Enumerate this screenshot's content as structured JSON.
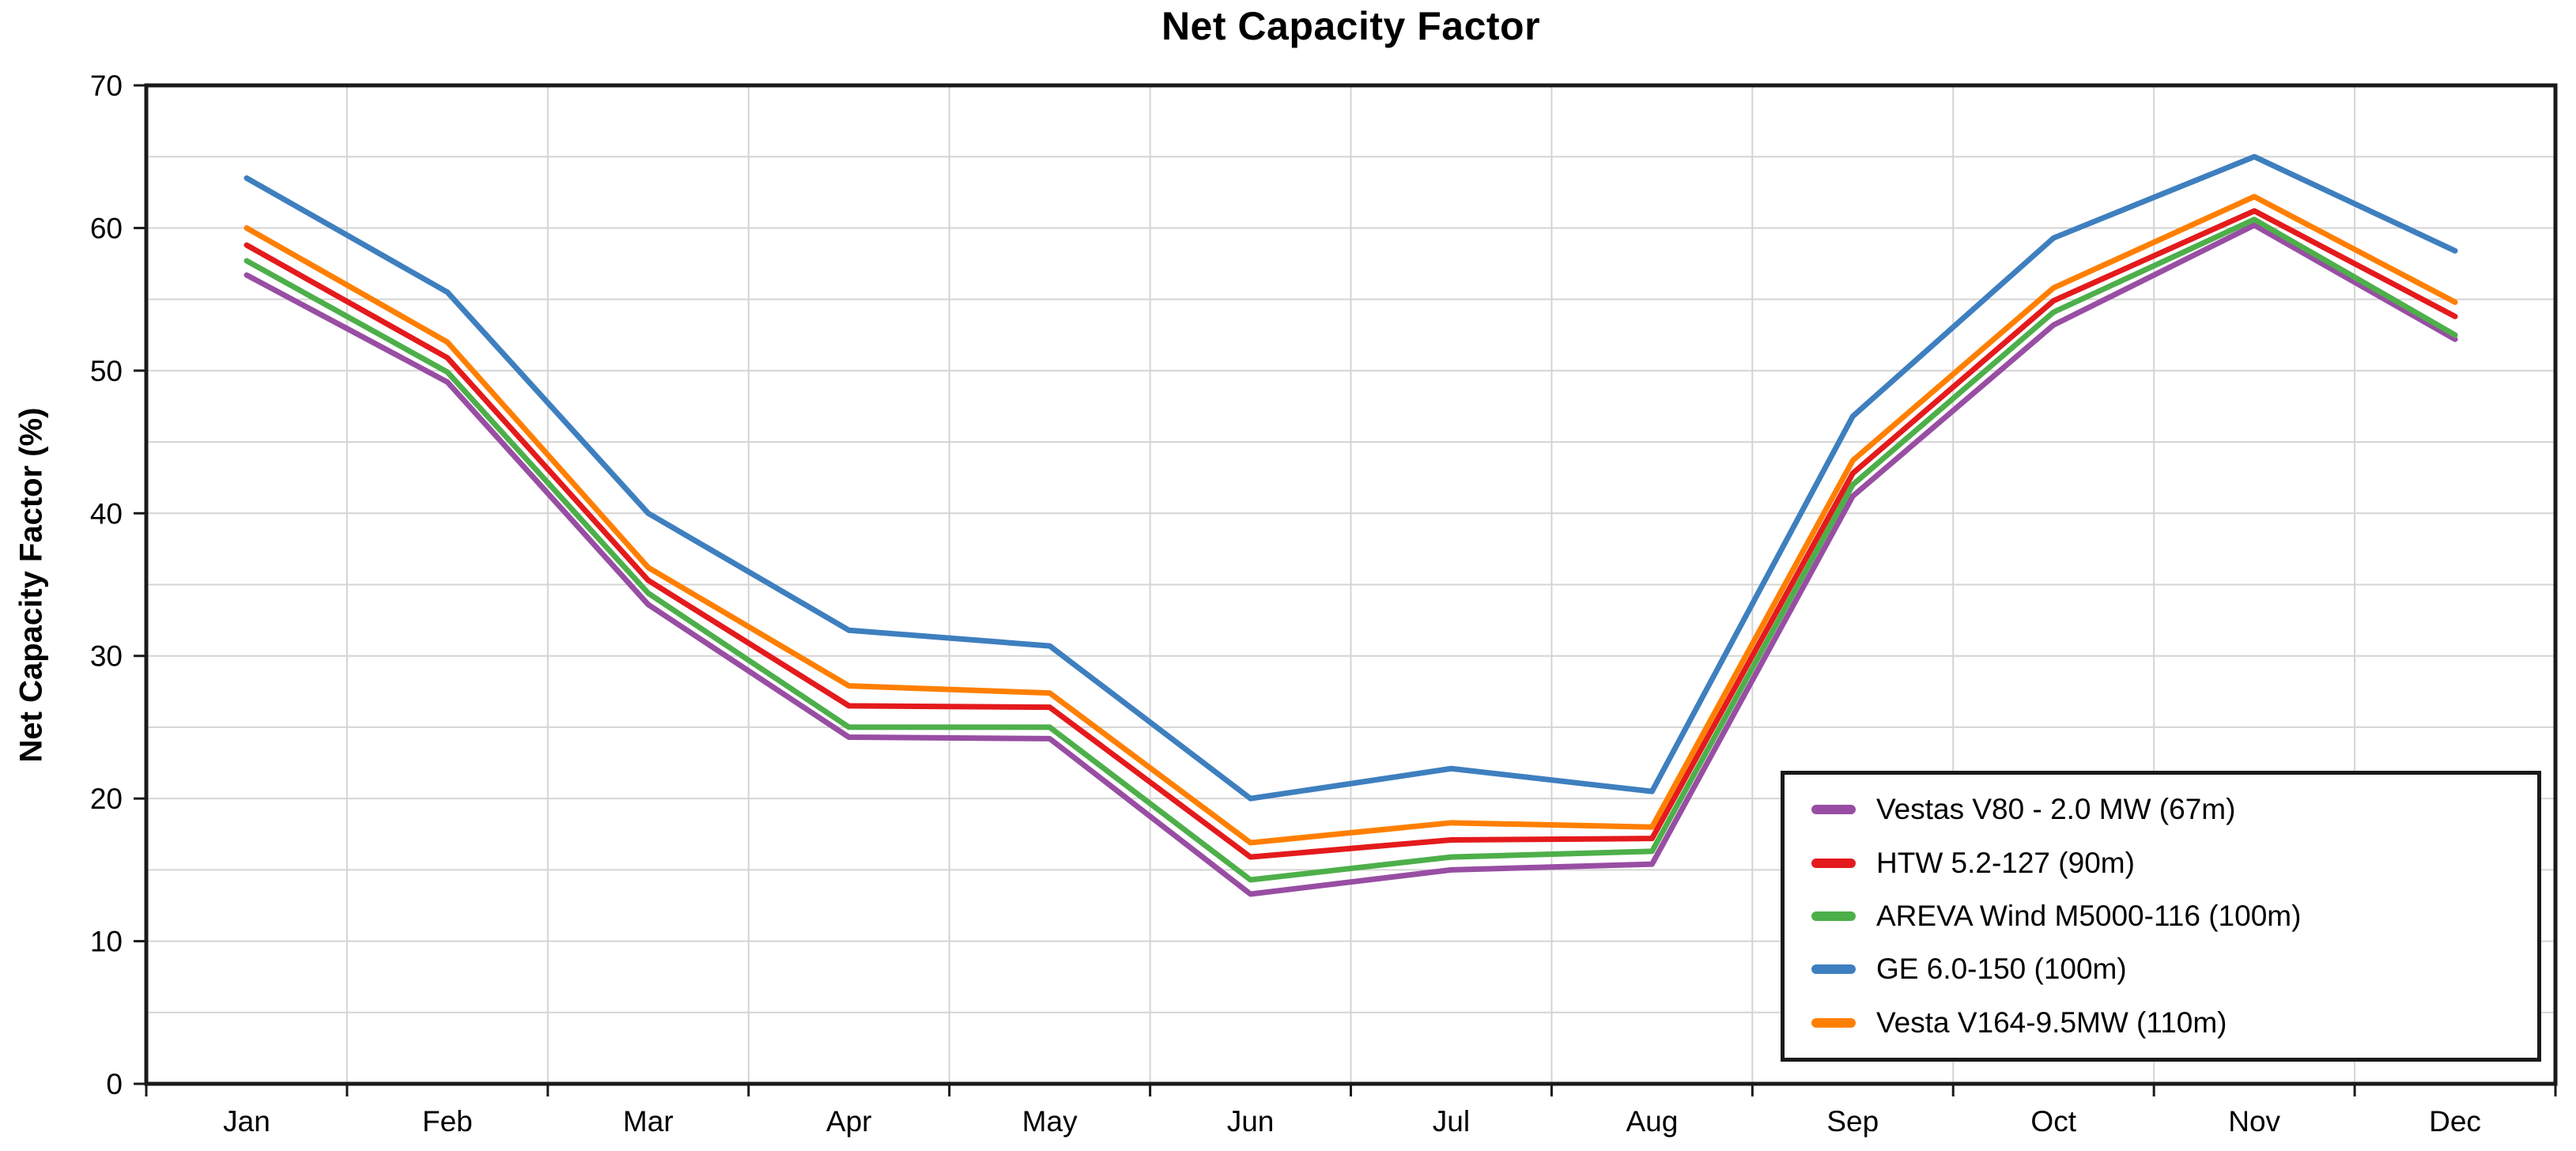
{
  "page": {
    "background": "#ffffff"
  },
  "chart_data": {
    "type": "line",
    "title": "Net Capacity Factor",
    "ylabel": "Net Capacity Factor (%)",
    "xlabel": "",
    "categories": [
      "Jan",
      "Feb",
      "Mar",
      "Apr",
      "May",
      "Jun",
      "Jul",
      "Aug",
      "Sep",
      "Oct",
      "Nov",
      "Dec"
    ],
    "ylim": [
      0,
      70
    ],
    "ytick_step": 10,
    "grid_step": 5,
    "grid": true,
    "grid_color": "#d4d4d4",
    "axis_color": "#1a1a1a",
    "legend_position": "lower right",
    "line_width": 7,
    "series": [
      {
        "name": "Vestas V80 - 2.0 MW (67m)",
        "color": "#984EA3",
        "values": [
          56.7,
          49.2,
          33.6,
          24.3,
          24.2,
          13.3,
          15.0,
          15.4,
          41.2,
          53.2,
          60.2,
          52.2
        ]
      },
      {
        "name": "HTW 5.2-127 (90m)",
        "color": "#E41A1C",
        "values": [
          58.8,
          50.9,
          35.3,
          26.5,
          26.4,
          15.9,
          17.1,
          17.2,
          42.8,
          54.9,
          61.2,
          53.8
        ]
      },
      {
        "name": "AREVA Wind M5000-116 (100m)",
        "color": "#4DAF4A",
        "values": [
          57.7,
          49.9,
          34.4,
          25.0,
          25.0,
          14.3,
          15.9,
          16.3,
          42.0,
          54.1,
          60.6,
          52.5
        ]
      },
      {
        "name": "GE 6.0-150 (100m)",
        "color": "#3E7FBF",
        "values": [
          63.5,
          55.5,
          40.0,
          31.8,
          30.7,
          20.0,
          22.1,
          20.5,
          46.8,
          59.3,
          65.0,
          58.4
        ]
      },
      {
        "name": "Vesta V164-9.5MW (110m)",
        "color": "#FF7F00",
        "values": [
          60.0,
          52.0,
          36.2,
          27.9,
          27.4,
          16.9,
          18.3,
          18.0,
          43.7,
          55.8,
          62.2,
          54.8
        ]
      }
    ]
  }
}
